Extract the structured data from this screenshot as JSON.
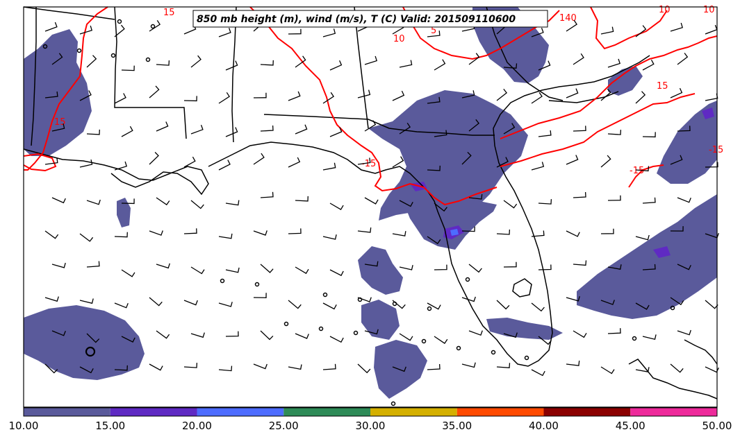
{
  "title": "850 mb height (m), wind (m/s), T (C) Valid: 201509110600",
  "colorbar": {
    "colors": [
      "#5a5a9b",
      "#5f2ac3",
      "#4d6cff",
      "#2e8b57",
      "#d4b000",
      "#ff4a00",
      "#8b0000",
      "#ee2a9b"
    ],
    "tick_labels": [
      "10.00",
      "15.00",
      "20.00",
      "25.00",
      "30.00",
      "35.00",
      "40.00",
      "45.00",
      "50.00"
    ]
  },
  "temperature_contour_labels": [
    "15",
    "15",
    "10",
    "5",
    "10",
    "10",
    "140",
    "-15",
    "-15",
    "-15",
    "15"
  ],
  "fill_color": "#5a5a9b",
  "contour_color": "#ff0000"
}
